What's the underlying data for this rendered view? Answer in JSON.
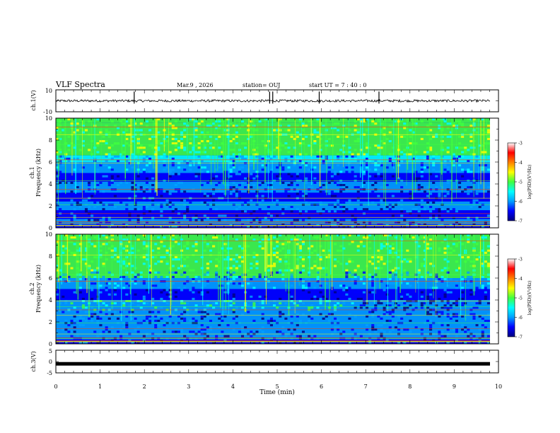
{
  "header": {
    "title": "VLF Spectra",
    "date": "Mar.9 , 2026",
    "station": "station= OUJ",
    "start": "start UT = 7 : 40 : 0"
  },
  "colors": {
    "colormap": [
      "#000080",
      "#0000ff",
      "#00a0ff",
      "#00ffff",
      "#40ff40",
      "#ffff00",
      "#ff8000",
      "#ff0000",
      "#ffffff"
    ],
    "trace": "#000000"
  },
  "chart_data": [
    {
      "type": "line",
      "name": "ch1-waveform",
      "ylabel": "ch.1(V)",
      "ylim": [
        -10,
        10
      ],
      "yticks": [
        "10",
        "-10"
      ],
      "xlim": [
        0,
        10
      ],
      "spikes_min": [
        1.77,
        4.83,
        4.9,
        5.95,
        7.3
      ],
      "baseline": 0
    },
    {
      "type": "heatmap",
      "name": "ch1-spectrogram",
      "title": "ch.1",
      "ylabel": "Frequency (kHz)",
      "ylim": [
        0,
        10
      ],
      "yticks": [
        "0",
        "2",
        "4",
        "6",
        "8",
        "10"
      ],
      "xlim": [
        0,
        9.8
      ],
      "colorbar": {
        "label": "log(PSD)(V²/Hz)",
        "ticks": [
          "-3",
          "-4",
          "-5",
          "-6",
          "-7"
        ],
        "range": [
          -7,
          -3
        ]
      }
    },
    {
      "type": "heatmap",
      "name": "ch2-spectrogram",
      "title": "ch.2",
      "ylabel": "Frequency (kHz)",
      "ylim": [
        0,
        10
      ],
      "yticks": [
        "0",
        "2",
        "4",
        "6",
        "8",
        "10"
      ],
      "xlim": [
        0,
        9.8
      ],
      "change_min": 6.7,
      "colorbar": {
        "label": "log(PSD)(V²/Hz)",
        "ticks": [
          "-3",
          "-4",
          "-5",
          "-6",
          "-7"
        ],
        "range": [
          -7,
          -3
        ]
      }
    },
    {
      "type": "line",
      "name": "ch3-waveform",
      "ylabel": "ch.3(V)",
      "ylim": [
        -5,
        5
      ],
      "yticks": [
        "5",
        "0",
        "-5"
      ],
      "xlim": [
        0,
        10
      ],
      "level": -1
    }
  ],
  "xaxis": {
    "label": "Time (min)",
    "ticks": [
      "0",
      "1",
      "2",
      "3",
      "4",
      "5",
      "6",
      "7",
      "8",
      "9",
      "10"
    ]
  }
}
